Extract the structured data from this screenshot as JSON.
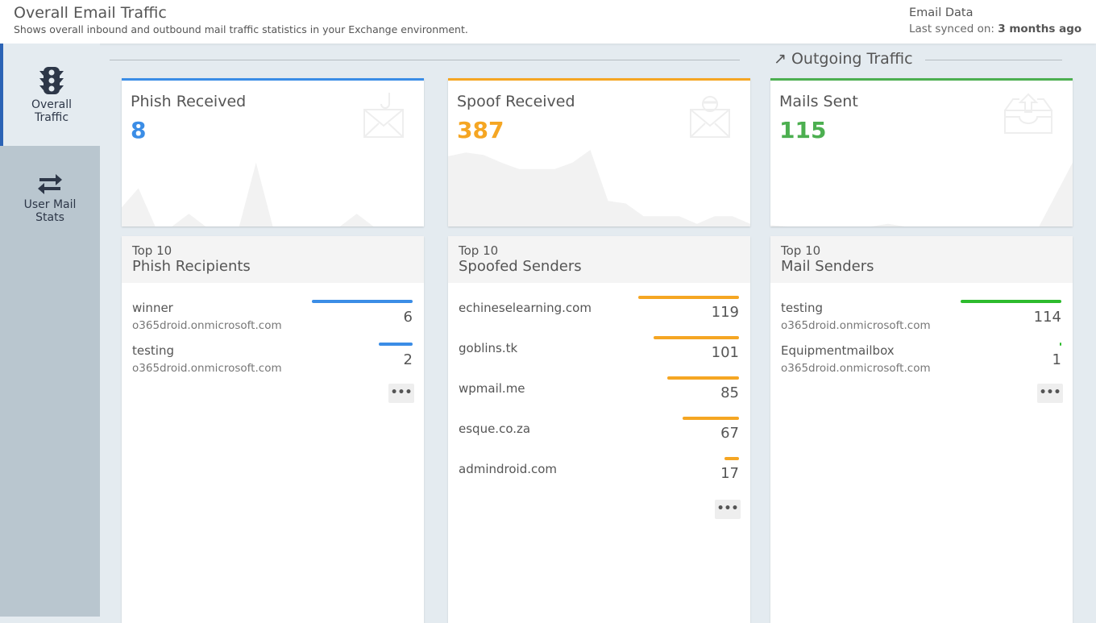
{
  "header": {
    "title": "Overall Email Traffic",
    "subtitle": "Shows overall inbound and outbound mail traffic statistics in your Exchange environment.",
    "data_label": "Email Data",
    "sync_prefix": "Last synced on:",
    "sync_value": "3 months ago"
  },
  "sidebar": {
    "items": [
      {
        "label1": "Overall",
        "label2": "Traffic"
      },
      {
        "label1": "User Mail",
        "label2": "Stats"
      }
    ]
  },
  "outgoing_label": "Outgoing Traffic",
  "cards": [
    {
      "title": "Phish Received",
      "value": "8",
      "color": "#3b8de6",
      "spark": [
        1.5,
        3,
        0,
        0,
        1,
        0,
        0,
        0,
        5,
        0,
        0,
        0,
        0,
        0,
        1,
        0,
        0,
        0,
        0
      ]
    },
    {
      "title": "Spoof Received",
      "value": "387",
      "color": "#f5a623",
      "spark": [
        5.5,
        5.8,
        5.6,
        5,
        4.5,
        4.5,
        4.5,
        5,
        6,
        2,
        1.8,
        0.8,
        0.8,
        0.8,
        0.2,
        0.8,
        0.8,
        0.2
      ]
    },
    {
      "title": "Mails Sent",
      "value": "115",
      "color": "#4caf50",
      "spark": [
        0.1,
        0,
        0,
        0,
        0,
        0,
        0,
        0.2,
        0,
        0,
        0,
        0,
        0,
        0,
        0,
        0,
        0,
        2.5,
        5
      ]
    }
  ],
  "panels": [
    {
      "top": "Top 10",
      "title": "Phish Recipients",
      "color": "#3b8de6",
      "max": 6,
      "rows": [
        {
          "name": "winner",
          "domain": "o365droid.onmicrosoft.com",
          "value": 6
        },
        {
          "name": "testing",
          "domain": "o365droid.onmicrosoft.com",
          "value": 2
        }
      ]
    },
    {
      "top": "Top 10",
      "title": "Spoofed Senders",
      "color": "#f5a623",
      "max": 119,
      "rows": [
        {
          "name": "echineselearning.com",
          "value": 119
        },
        {
          "name": "goblins.tk",
          "value": 101
        },
        {
          "name": "wpmail.me",
          "value": 85
        },
        {
          "name": "esque.co.za",
          "value": 67
        },
        {
          "name": "admindroid.com",
          "value": 17
        }
      ]
    },
    {
      "top": "Top 10",
      "title": "Mail Senders",
      "color": "#2dbb2d",
      "max": 114,
      "rows": [
        {
          "name": "testing",
          "domain": "o365droid.onmicrosoft.com",
          "value": 114
        },
        {
          "name": "Equipmentmailbox",
          "domain": "o365droid.onmicrosoft.com",
          "value": 1
        }
      ]
    }
  ],
  "more_label": "•••"
}
